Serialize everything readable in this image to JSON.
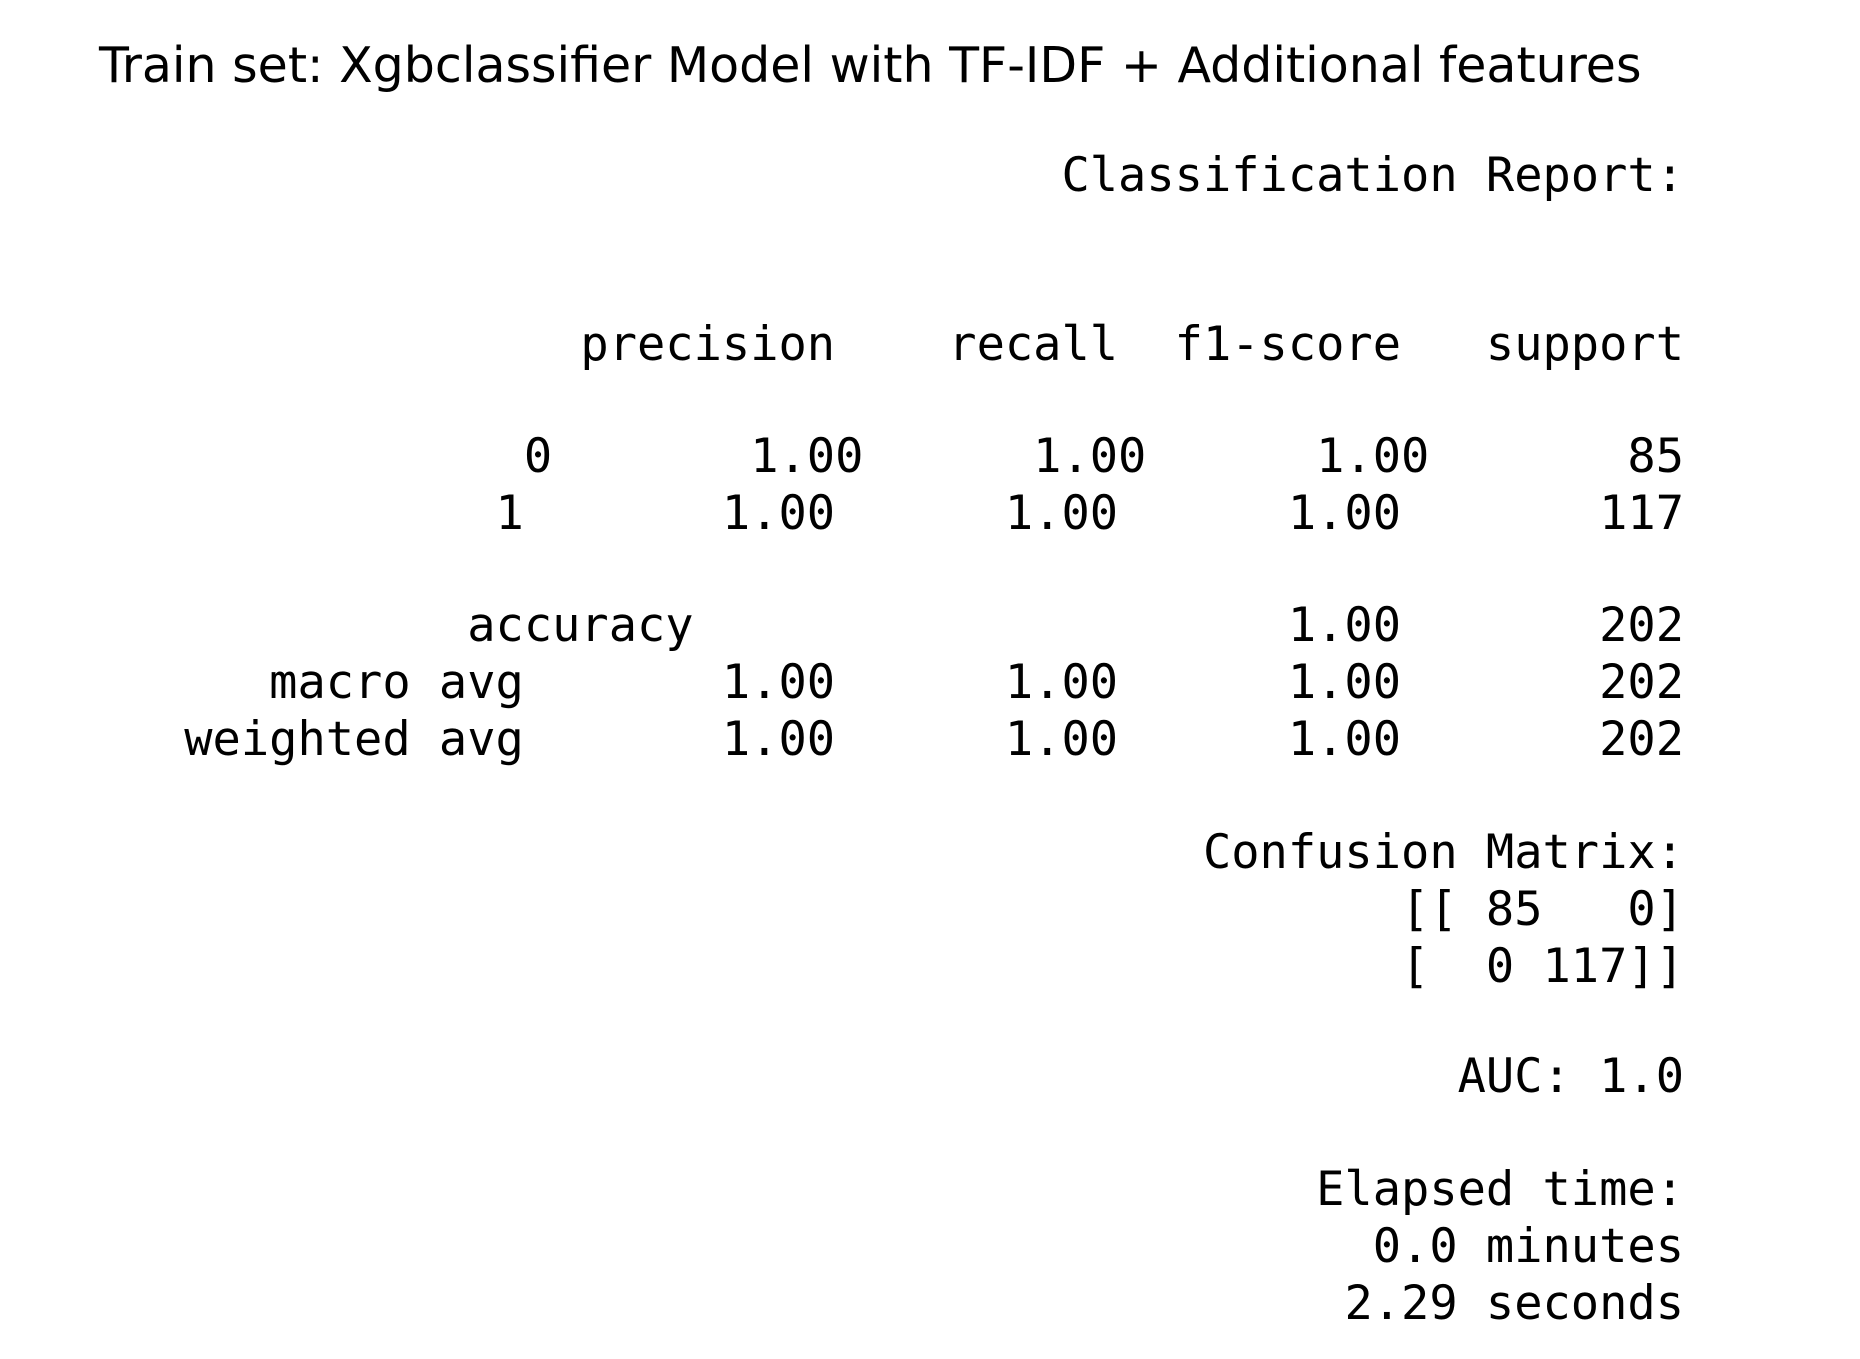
{
  "report": {
    "title": "Train set: Xgbclassifier Model with TF-IDF + Additional features",
    "classification_heading": "Classification Report:",
    "columns": [
      "precision",
      "recall",
      "f1-score",
      "support"
    ],
    "rows": [
      {
        "label": "0",
        "precision": "1.00",
        "recall": "1.00",
        "f1_score": "1.00",
        "support": "85"
      },
      {
        "label": "1",
        "precision": "1.00",
        "recall": "1.00",
        "f1_score": "1.00",
        "support": "117"
      },
      {
        "label": "accuracy",
        "precision": "",
        "recall": "",
        "f1_score": "1.00",
        "support": "202"
      },
      {
        "label": "macro avg",
        "precision": "1.00",
        "recall": "1.00",
        "f1_score": "1.00",
        "support": "202"
      },
      {
        "label": "weighted avg",
        "precision": "1.00",
        "recall": "1.00",
        "f1_score": "1.00",
        "support": "202"
      }
    ],
    "confusion_heading": "Confusion Matrix:",
    "confusion_rows": [
      "[[ 85   0]",
      "[  0 117]]"
    ],
    "auc_text": "AUC: 1.0",
    "elapsed_heading": "Elapsed time:",
    "elapsed_minutes": "0.0 minutes",
    "elapsed_seconds": "2.29 seconds"
  }
}
